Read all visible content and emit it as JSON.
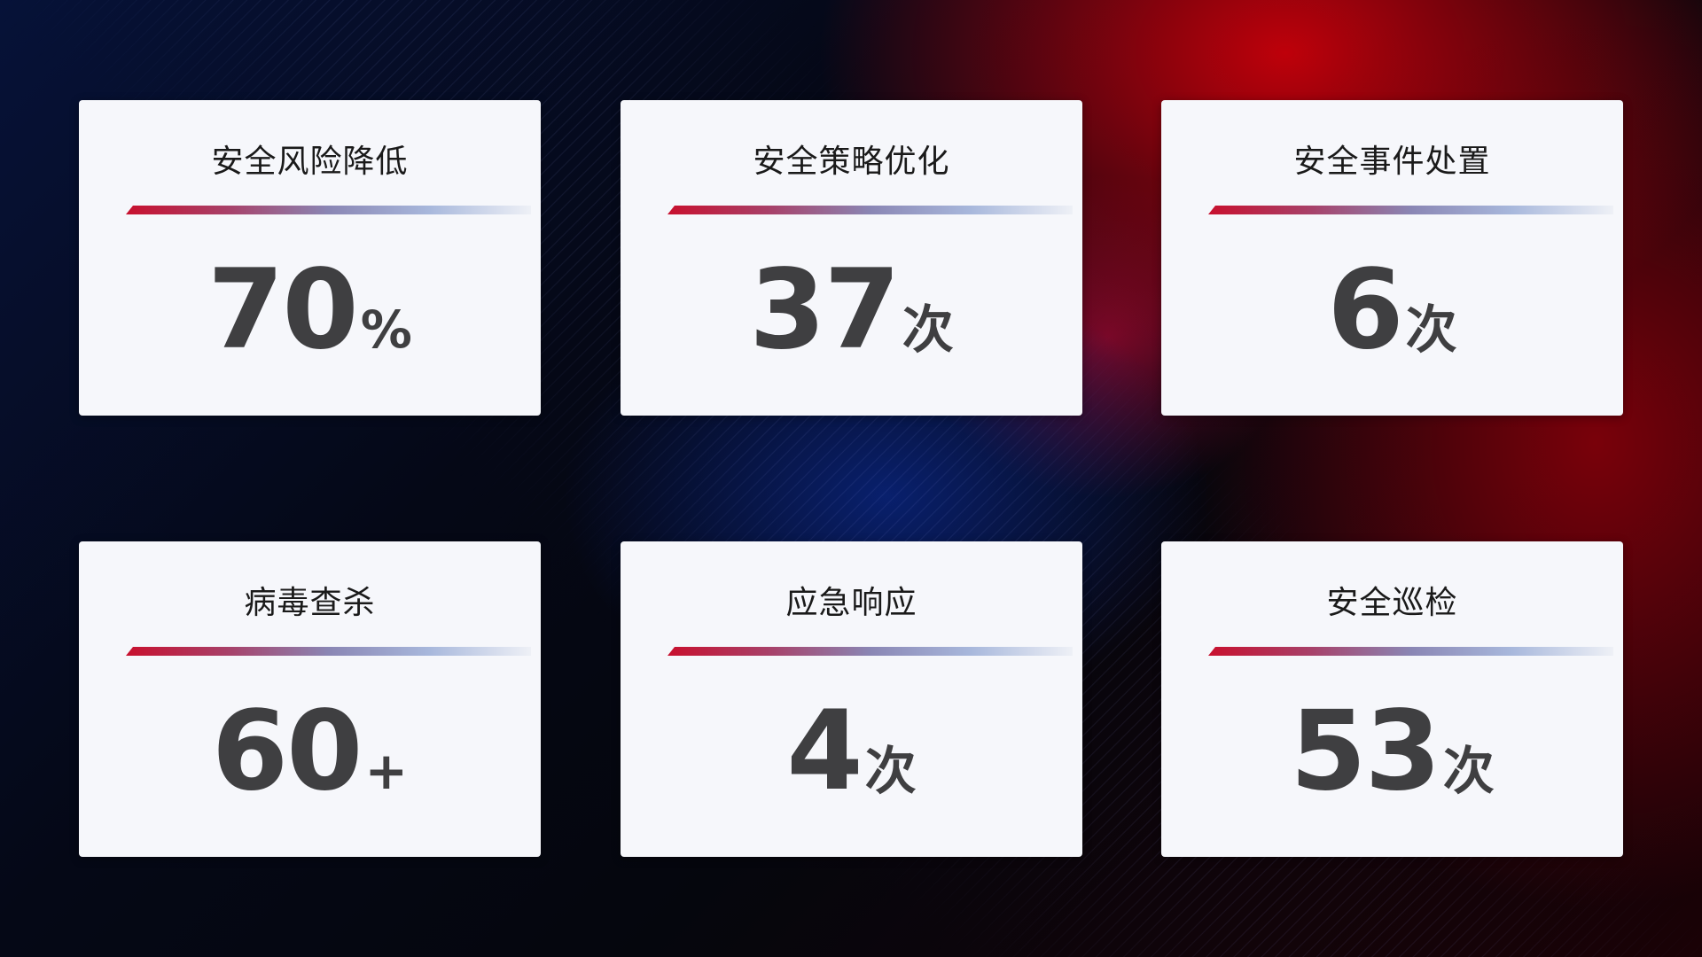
{
  "cards": [
    {
      "title": "安全风险降低",
      "value": "70",
      "unit": "%"
    },
    {
      "title": "安全策略优化",
      "value": "37",
      "unit": "次"
    },
    {
      "title": "安全事件处置",
      "value": "6",
      "unit": "次"
    },
    {
      "title": "病毒查杀",
      "value": "60",
      "unit": "+"
    },
    {
      "title": "应急响应",
      "value": "4",
      "unit": "次"
    },
    {
      "title": "安全巡检",
      "value": "53",
      "unit": "次"
    }
  ],
  "colors": {
    "accent_red": "#c8102e",
    "accent_blue": "#8a9ccc",
    "card_bg": "#f6f7fb",
    "value_text": "#3f3f41"
  }
}
